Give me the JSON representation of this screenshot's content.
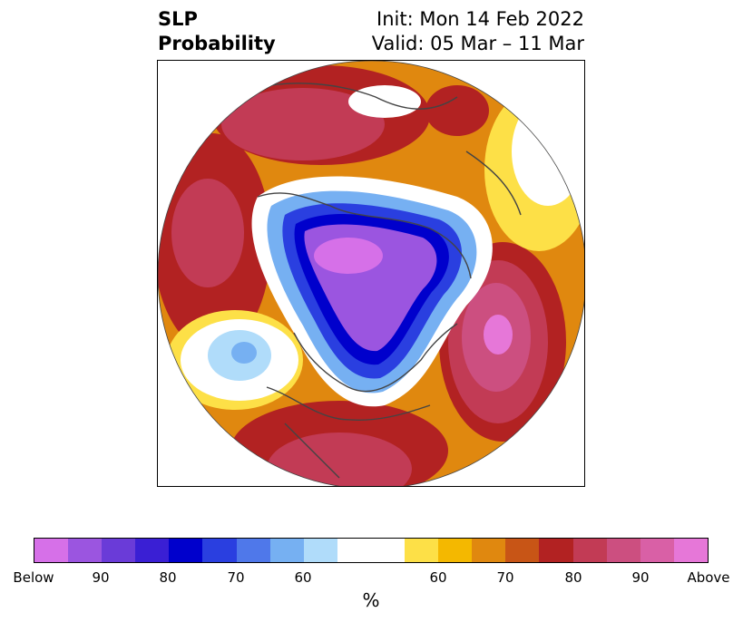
{
  "title": {
    "left_line1": "SLP",
    "left_line2": "Probability",
    "right_line1": "Init: Mon 14 Feb 2022",
    "right_line2": "Valid: 05 Mar – 11 Mar"
  },
  "colorbar": {
    "unit": "%",
    "colors": [
      "#d670e8",
      "#9b55e0",
      "#6a3bd8",
      "#3a1fd4",
      "#0000cc",
      "#2a3fe0",
      "#4f78ea",
      "#76b0f2",
      "#b0dcfa",
      "#ffffff",
      "#ffffff",
      "#fde047",
      "#f4b800",
      "#e0880f",
      "#c85516",
      "#b22222",
      "#c23b55",
      "#cc4f80",
      "#d960a6",
      "#e677d8"
    ],
    "ticks": [
      {
        "label": "Below"
      },
      {
        "label": "90"
      },
      {
        "label": "80"
      },
      {
        "label": "70"
      },
      {
        "label": "60"
      },
      {
        "label": "60"
      },
      {
        "label": "70"
      },
      {
        "label": "80"
      },
      {
        "label": "90"
      },
      {
        "label": "Above"
      }
    ]
  },
  "map": {
    "projection": "north-polar-stereographic",
    "background": "#ffffff",
    "coastline_color": "#444444"
  }
}
